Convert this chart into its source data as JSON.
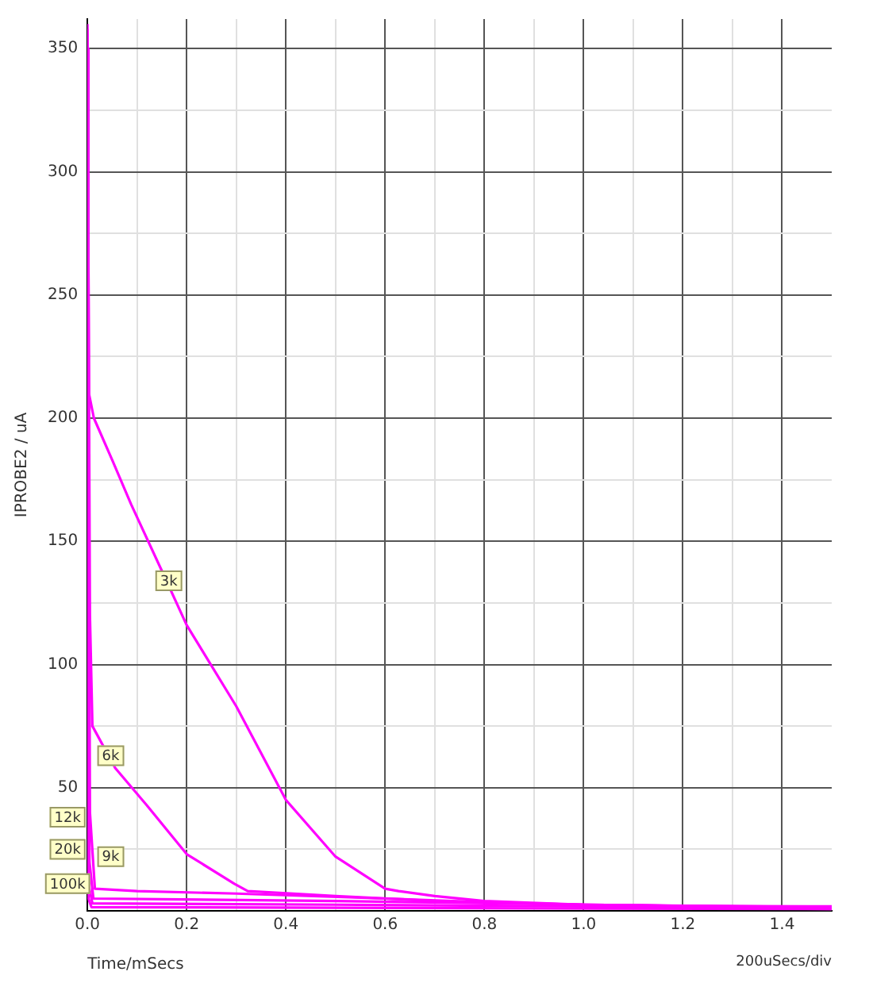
{
  "chart_data": {
    "type": "line",
    "xlabel": "Time/mSecs",
    "ylabel": "IPROBE2 / uA",
    "annotations": [
      {
        "text": "3k",
        "x": 0.164,
        "y": 134
      },
      {
        "text": "6k",
        "x": 0.047,
        "y": 63
      },
      {
        "text": "9k",
        "x": 0.047,
        "y": 22
      },
      {
        "text": "12k",
        "x": -0.04,
        "y": 38
      },
      {
        "text": "20k",
        "x": -0.04,
        "y": 25
      },
      {
        "text": "100k",
        "x": -0.04,
        "y": 11
      },
      "200uSecs/div"
    ],
    "series": [
      {
        "color": "#ff00ff",
        "x": [
          0,
          0.003,
          0.013,
          0.05,
          0.088,
          0.15,
          0.2,
          0.3,
          0.4,
          0.5,
          0.6,
          0.627,
          0.7,
          0.8,
          1.0,
          1.2,
          1.5
        ],
        "values": [
          360,
          210,
          200,
          183,
          165,
          138,
          116,
          83,
          45,
          22,
          9,
          8,
          6,
          4,
          2.5,
          2,
          1.8
        ]
      },
      {
        "color": "#ff00ff",
        "x": [
          0,
          0.005,
          0.01,
          0.056,
          0.119,
          0.2,
          0.296,
          0.323,
          0.5,
          0.7,
          1.0,
          1.5
        ],
        "values": [
          358,
          120,
          75,
          58,
          43,
          23,
          11,
          8,
          6,
          4,
          2.5,
          1.5
        ]
      },
      {
        "color": "#ff00ff",
        "x": [
          0,
          0.005,
          0.015,
          0.1,
          0.3,
          0.6,
          0.8,
          1.0,
          1.5
        ],
        "values": [
          356,
          40,
          9,
          8,
          7,
          5,
          3.5,
          2.5,
          1.3
        ]
      },
      {
        "color": "#ff00ff",
        "x": [
          0,
          0.004,
          0.012,
          0.5,
          1.0,
          1.5
        ],
        "values": [
          354,
          20,
          5,
          4,
          2.5,
          1.1
        ]
      },
      {
        "color": "#ff00ff",
        "x": [
          0,
          0.003,
          0.01,
          0.5,
          1.0,
          1.5
        ],
        "values": [
          352,
          10,
          3,
          2.5,
          1.8,
          0.9
        ]
      },
      {
        "color": "#ff00ff",
        "x": [
          0,
          0.002,
          0.008,
          1.5
        ],
        "values": [
          350,
          5,
          1.5,
          0.7
        ]
      }
    ],
    "xlim": [
      0,
      1.5
    ],
    "ylim": [
      0,
      362
    ],
    "xticks": [
      {
        "value": 0,
        "label": "0.0"
      },
      {
        "value": 0.1,
        "label": null
      },
      {
        "value": 0.2,
        "label": "0.2"
      },
      {
        "value": 0.3,
        "label": null
      },
      {
        "value": 0.4,
        "label": "0.4"
      },
      {
        "value": 0.5,
        "label": null
      },
      {
        "value": 0.6,
        "label": "0.6"
      },
      {
        "value": 0.7,
        "label": null
      },
      {
        "value": 0.8,
        "label": "0.8"
      },
      {
        "value": 0.9,
        "label": null
      },
      {
        "value": 1.0,
        "label": "1.0"
      },
      {
        "value": 1.1,
        "label": null
      },
      {
        "value": 1.2,
        "label": "1.2"
      },
      {
        "value": 1.3,
        "label": null
      },
      {
        "value": 1.4,
        "label": "1.4"
      }
    ],
    "yticks": [
      {
        "value": 0,
        "label": null
      },
      {
        "value": 25,
        "label": null
      },
      50,
      {
        "value": 75,
        "label": null
      },
      100,
      {
        "value": 125,
        "label": null
      },
      150,
      {
        "value": 175,
        "label": null
      },
      200,
      {
        "value": 225,
        "label": null
      },
      250,
      {
        "value": 275,
        "label": null
      },
      300,
      {
        "value": 325,
        "label": null
      },
      350
    ],
    "grid": true,
    "legend": false,
    "marker": "none",
    "line_style": "solid"
  }
}
